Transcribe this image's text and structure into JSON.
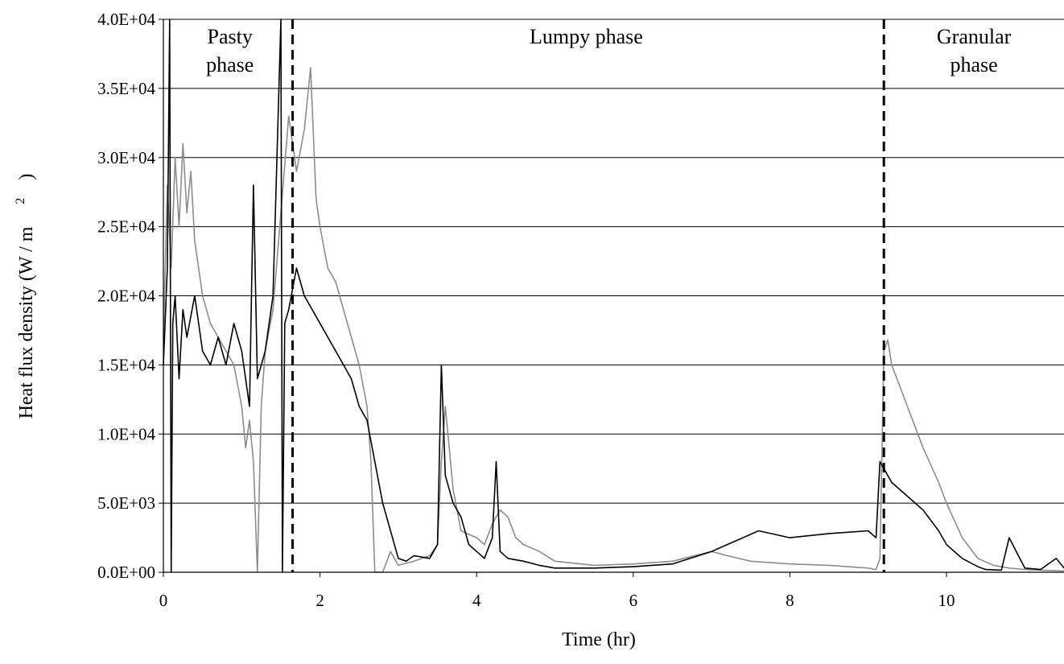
{
  "chart_data": {
    "type": "line",
    "xlabel": "Time (hr)",
    "ylabel": "Heat flux density (W / m",
    "ylabel_sup": "2",
    "ylabel_close": ")",
    "xlim": [
      0,
      11.5
    ],
    "ylim": [
      0,
      40000
    ],
    "x_ticks": [
      {
        "value": 0,
        "label": "0"
      },
      {
        "value": 2,
        "label": "2"
      },
      {
        "value": 4,
        "label": "4"
      },
      {
        "value": 6,
        "label": "6"
      },
      {
        "value": 8,
        "label": "8"
      },
      {
        "value": 10,
        "label": "10"
      }
    ],
    "y_ticks": [
      {
        "value": 0,
        "label": "0.0E+00"
      },
      {
        "value": 5000,
        "label": "5.0E+03"
      },
      {
        "value": 10000,
        "label": "1.0E+04"
      },
      {
        "value": 15000,
        "label": "1.5E+04"
      },
      {
        "value": 20000,
        "label": "2.0E+04"
      },
      {
        "value": 25000,
        "label": "2.5E+04"
      },
      {
        "value": 30000,
        "label": "3.0E+04"
      },
      {
        "value": 35000,
        "label": "3.5E+04"
      },
      {
        "value": 40000,
        "label": "4.0E+04"
      }
    ],
    "grid": {
      "horizontal": true,
      "vertical": false
    },
    "phase_boundaries": [
      1.65,
      9.2
    ],
    "phases": [
      {
        "lines": [
          "Pasty",
          "phase"
        ],
        "x": 0.85
      },
      {
        "lines": [
          "Lumpy phase"
        ],
        "x": 5.4
      },
      {
        "lines": [
          "Granular",
          "phase"
        ],
        "x": 10.35
      }
    ],
    "series": [
      {
        "color": "#8c8c8c",
        "x": [
          0.0,
          0.05,
          0.1,
          0.15,
          0.2,
          0.25,
          0.3,
          0.35,
          0.4,
          0.45,
          0.5,
          0.6,
          0.7,
          0.8,
          0.9,
          1.0,
          1.05,
          1.1,
          1.15,
          1.2,
          1.25,
          1.3,
          1.4,
          1.5,
          1.6,
          1.7,
          1.8,
          1.88,
          1.95,
          2.0,
          2.1,
          2.2,
          2.3,
          2.4,
          2.5,
          2.6,
          2.65,
          2.7,
          2.8,
          2.9,
          3.0,
          3.2,
          3.4,
          3.5,
          3.55,
          3.6,
          3.7,
          3.8,
          4.0,
          4.1,
          4.2,
          4.3,
          4.4,
          4.5,
          4.6,
          4.8,
          5.0,
          5.5,
          6.0,
          6.5,
          7.0,
          7.2,
          7.5,
          8.0,
          8.5,
          9.0,
          9.1,
          9.15,
          9.2,
          9.25,
          9.3,
          9.5,
          9.7,
          9.9,
          10.0,
          10.2,
          10.4,
          10.6,
          10.8,
          11.0,
          11.2,
          11.5
        ],
        "values": [
          17000,
          28000,
          22000,
          30000,
          25000,
          31000,
          26000,
          29000,
          24000,
          22000,
          20000,
          18000,
          17000,
          16000,
          15000,
          12000,
          9000,
          11000,
          8000,
          0,
          12000,
          16000,
          19000,
          26000,
          33000,
          29000,
          32000,
          36500,
          27000,
          25000,
          22000,
          21000,
          19000,
          17000,
          15000,
          12000,
          8000,
          0,
          0,
          1500,
          500,
          800,
          1200,
          2000,
          8000,
          12000,
          6000,
          3000,
          2500,
          2000,
          3500,
          4500,
          4000,
          2500,
          2000,
          1500,
          800,
          500,
          600,
          800,
          1500,
          1200,
          800,
          600,
          500,
          300,
          200,
          1000,
          16000,
          16800,
          15000,
          12000,
          9000,
          6500,
          5000,
          2500,
          1000,
          500,
          300,
          200,
          150,
          100
        ]
      },
      {
        "color": "#000000",
        "x": [
          0.0,
          0.05,
          0.08,
          0.1,
          0.12,
          0.15,
          0.2,
          0.25,
          0.3,
          0.4,
          0.5,
          0.6,
          0.7,
          0.8,
          0.9,
          1.0,
          1.1,
          1.15,
          1.2,
          1.3,
          1.4,
          1.5,
          1.52,
          1.55,
          1.6,
          1.7,
          1.8,
          1.9,
          2.0,
          2.1,
          2.2,
          2.3,
          2.4,
          2.5,
          2.6,
          2.7,
          2.8,
          2.9,
          3.0,
          3.1,
          3.2,
          3.4,
          3.5,
          3.55,
          3.6,
          3.7,
          3.8,
          3.9,
          4.0,
          4.1,
          4.2,
          4.25,
          4.3,
          4.4,
          4.6,
          4.8,
          5.0,
          5.5,
          6.0,
          6.5,
          7.0,
          7.2,
          7.4,
          7.6,
          8.0,
          8.5,
          9.0,
          9.1,
          9.15,
          9.2,
          9.3,
          9.5,
          9.7,
          9.9,
          10.0,
          10.2,
          10.4,
          10.5,
          10.7,
          10.8,
          11.0,
          11.2,
          11.4,
          11.5
        ],
        "values": [
          15000,
          22000,
          40000,
          0,
          18000,
          20000,
          14000,
          19000,
          17000,
          20000,
          16000,
          15000,
          17000,
          15000,
          18000,
          16000,
          12000,
          28000,
          14000,
          16000,
          20000,
          40000,
          0,
          18000,
          19000,
          22000,
          20000,
          19000,
          18000,
          17000,
          16000,
          15000,
          14000,
          12000,
          11000,
          8000,
          5000,
          3000,
          1000,
          800,
          1200,
          1000,
          2000,
          15000,
          7000,
          5000,
          4000,
          2000,
          1500,
          1000,
          2500,
          8000,
          1500,
          1000,
          800,
          500,
          300,
          300,
          400,
          600,
          1500,
          2000,
          2500,
          3000,
          2500,
          2800,
          3000,
          2500,
          8000,
          7500,
          6500,
          5500,
          4500,
          3000,
          2000,
          1000,
          400,
          200,
          150,
          2500,
          300,
          200,
          1000,
          300
        ]
      }
    ]
  }
}
